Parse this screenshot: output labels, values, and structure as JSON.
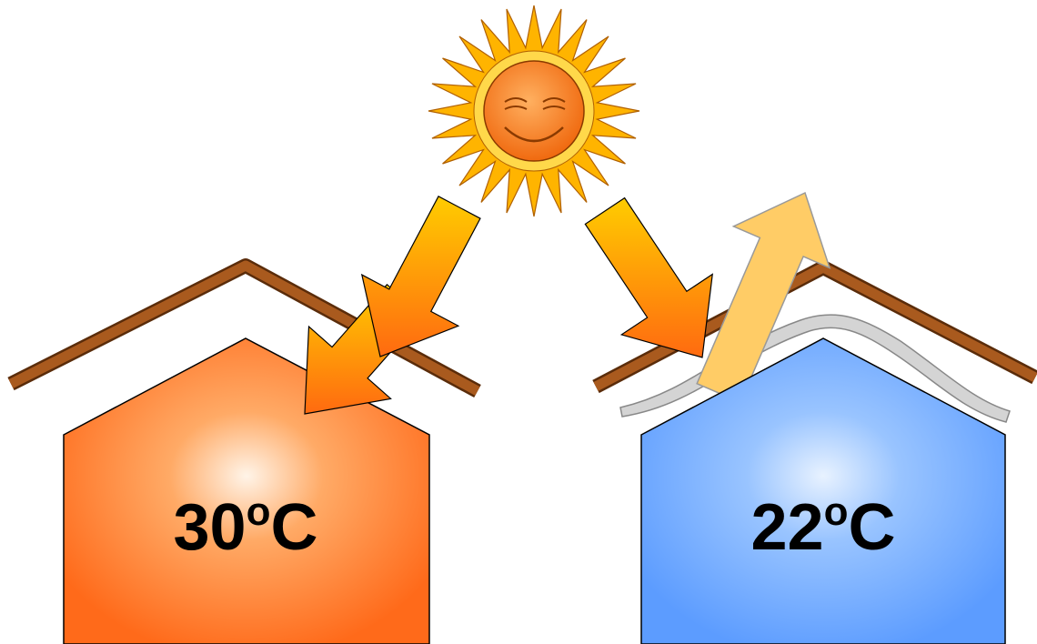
{
  "houses": [
    {
      "temperature": "30",
      "degree_mark": "o",
      "unit": "C"
    },
    {
      "temperature": "22",
      "degree_mark": "o",
      "unit": "C"
    }
  ]
}
